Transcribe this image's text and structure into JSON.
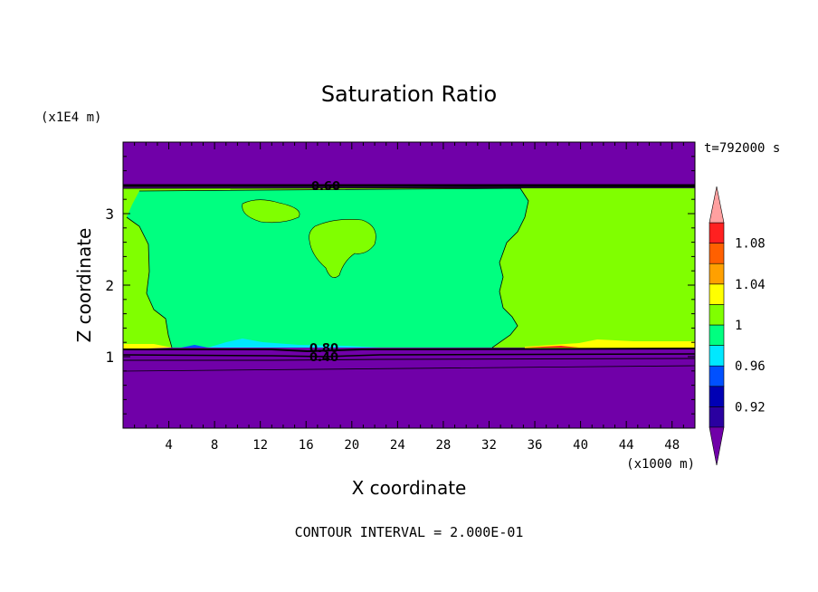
{
  "chart_data": {
    "type": "heatmap",
    "title": "Saturation Ratio",
    "xlabel": "X coordinate",
    "ylabel": "Z coordinate",
    "x_unit": "(x1000 m)",
    "y_unit": "(x1E4 m)",
    "time_label": "t=792000 s",
    "footer": "CONTOUR INTERVAL = 2.000E-01",
    "xlim": [
      0,
      50
    ],
    "ylim": [
      0,
      4
    ],
    "x_ticks": [
      4,
      8,
      12,
      16,
      20,
      24,
      28,
      32,
      36,
      40,
      44,
      48
    ],
    "y_ticks": [
      1,
      2,
      3
    ],
    "colorbar": {
      "levels": [
        0.9,
        0.92,
        0.94,
        0.96,
        0.98,
        1.0,
        1.02,
        1.04,
        1.06,
        1.08,
        1.1
      ],
      "tick_labels": [
        "0.92",
        "0.96",
        "1",
        "1.04",
        "1.08"
      ],
      "tick_values": [
        0.92,
        0.96,
        1.0,
        1.04,
        1.08
      ],
      "colors": {
        "under": "#7000a8",
        "b1": "#2a00a0",
        "b2": "#0000b4",
        "b3": "#0050ff",
        "b4": "#00e8ff",
        "b5": "#00ff80",
        "b6": "#80ff00",
        "b7": "#ffff00",
        "b8": "#ffa000",
        "b9": "#ff6000",
        "b10": "#ff2020",
        "over": "#ffa0a0"
      }
    },
    "contour_labels": [
      {
        "text": "0.60",
        "x": 17.6,
        "y": 3.37
      },
      {
        "text": "0.80",
        "x": 17.6,
        "y": 1.09
      },
      {
        "text": "0.40",
        "x": 17.6,
        "y": 0.99
      }
    ],
    "regions": [
      {
        "desc": "upper dry layer",
        "value": 0.6,
        "color": "#7000a8"
      },
      {
        "desc": "lower dry layer",
        "value": 0.4,
        "color": "#7000a8"
      },
      {
        "desc": "central saturated region",
        "value": 0.99,
        "color": "#00ff80"
      },
      {
        "desc": "left edge supersaturated",
        "value": 1.01,
        "color": "#80ff00"
      },
      {
        "desc": "right supersaturated region",
        "value": 1.01,
        "color": "#80ff00"
      },
      {
        "desc": "embedded cells",
        "value": 1.01,
        "color": "#80ff00"
      },
      {
        "desc": "cloud-base yellow band",
        "value": 1.03,
        "color": "#ffff00"
      }
    ]
  }
}
